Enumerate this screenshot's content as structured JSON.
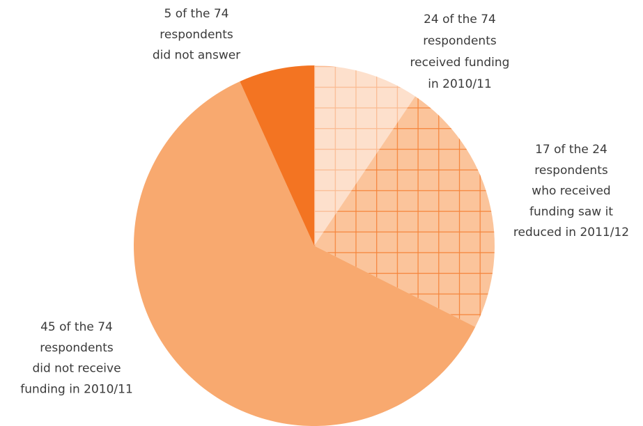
{
  "chart_data": {
    "type": "pie",
    "categories": [
      null,
      [
        "17 of the 24",
        "respondents",
        "who received",
        "funding saw it",
        "reduced in 2011/12"
      ],
      [
        "45 of the 74",
        "respondents",
        "did not receive",
        "funding in 2010/11"
      ],
      [
        "5 of the 74",
        "respondents",
        "did not answer"
      ]
    ],
    "values": [
      7,
      17,
      45,
      5
    ],
    "colors": [
      "#fde0cc",
      "#fbc49b",
      "#f8a96f",
      "#f37422"
    ],
    "hatched": [
      true,
      true,
      false,
      false
    ],
    "annotations": [
      {
        "text": [
          "24 of the 74",
          "respondents",
          "received funding",
          "in 2010/11"
        ]
      }
    ]
  }
}
